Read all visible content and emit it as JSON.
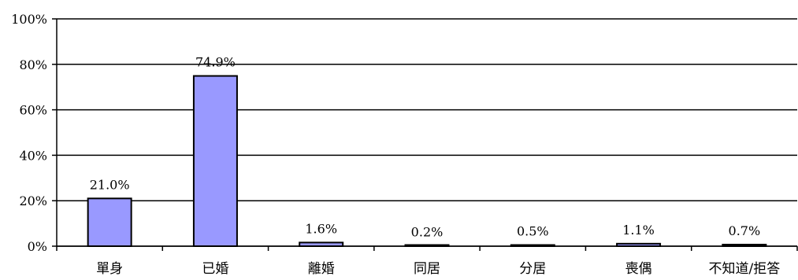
{
  "chart_data": {
    "type": "bar",
    "categories": [
      "單身",
      "已婚",
      "離婚",
      "同居",
      "分居",
      "喪偶",
      "不知道/拒答"
    ],
    "values": [
      21.0,
      74.9,
      1.6,
      0.2,
      0.5,
      1.1,
      0.7
    ],
    "data_labels": [
      "21.0%",
      "74.9%",
      "1.6%",
      "0.2%",
      "0.5%",
      "1.1%",
      "0.7%"
    ],
    "title": "",
    "xlabel": "",
    "ylabel": "",
    "ylim": [
      0,
      100
    ],
    "yticks": [
      0,
      20,
      40,
      60,
      80,
      100
    ],
    "ytick_labels": [
      "0%",
      "20%",
      "40%",
      "60%",
      "80%",
      "100%"
    ],
    "grid": true,
    "bar_color": "#9999ff",
    "bar_edge_color": "#000000"
  }
}
